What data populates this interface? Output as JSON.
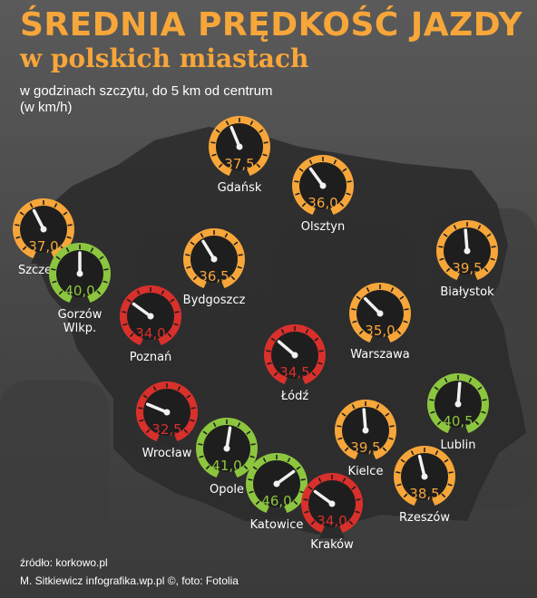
{
  "header": {
    "title": "ŚREDNIA PRĘDKOŚĆ JAZDY",
    "subtitle": "w polskich miastach",
    "note_line1": "w godzinach szczytu, do 5 km od centrum",
    "note_line2": "(w km/h)"
  },
  "colors": {
    "accent": "#f7a63a",
    "fast": "#8cc63f",
    "medium": "#f7a63a",
    "slow": "#d9302c",
    "map": "#2b2b2b"
  },
  "chart_data": {
    "type": "gauge-map",
    "unit": "km/h",
    "cities": [
      {
        "name": "Gdańsk",
        "value": "37,5",
        "speed": 37.5,
        "level": "medium"
      },
      {
        "name": "Olsztyn",
        "value": "36,0",
        "speed": 36.0,
        "level": "medium"
      },
      {
        "name": "Szczecin",
        "value": "37,0",
        "speed": 37.0,
        "level": "medium"
      },
      {
        "name": "Gorzów Wlkp.",
        "label_lines": [
          "Gorzów",
          "Wlkp."
        ],
        "value": "40,0",
        "speed": 40.0,
        "level": "fast"
      },
      {
        "name": "Bydgoszcz",
        "value": "36,5",
        "speed": 36.5,
        "level": "medium"
      },
      {
        "name": "Białystok",
        "value": "39,5",
        "speed": 39.5,
        "level": "medium"
      },
      {
        "name": "Poznań",
        "value": "34,0",
        "speed": 34.0,
        "level": "slow"
      },
      {
        "name": "Warszawa",
        "value": "35,0",
        "speed": 35.0,
        "level": "medium"
      },
      {
        "name": "Łódź",
        "value": "34,5",
        "speed": 34.5,
        "level": "slow"
      },
      {
        "name": "Lublin",
        "value": "40,5",
        "speed": 40.5,
        "level": "fast"
      },
      {
        "name": "Wrocław",
        "value": "32,5",
        "speed": 32.5,
        "level": "slow"
      },
      {
        "name": "Kielce",
        "value": "39,5",
        "speed": 39.5,
        "level": "medium"
      },
      {
        "name": "Opole",
        "value": "41,0",
        "speed": 41.0,
        "level": "fast"
      },
      {
        "name": "Rzeszów",
        "value": "38,5",
        "speed": 38.5,
        "level": "medium"
      },
      {
        "name": "Katowice",
        "value": "46,0",
        "speed": 46.0,
        "level": "fast"
      },
      {
        "name": "Kraków",
        "value": "34,0",
        "speed": 34.0,
        "level": "slow"
      }
    ]
  },
  "footer": {
    "source": "źródło: korkowo.pl",
    "credits": "M. Sitkiewicz infografika.wp.pl ©, foto: Fotolia"
  }
}
